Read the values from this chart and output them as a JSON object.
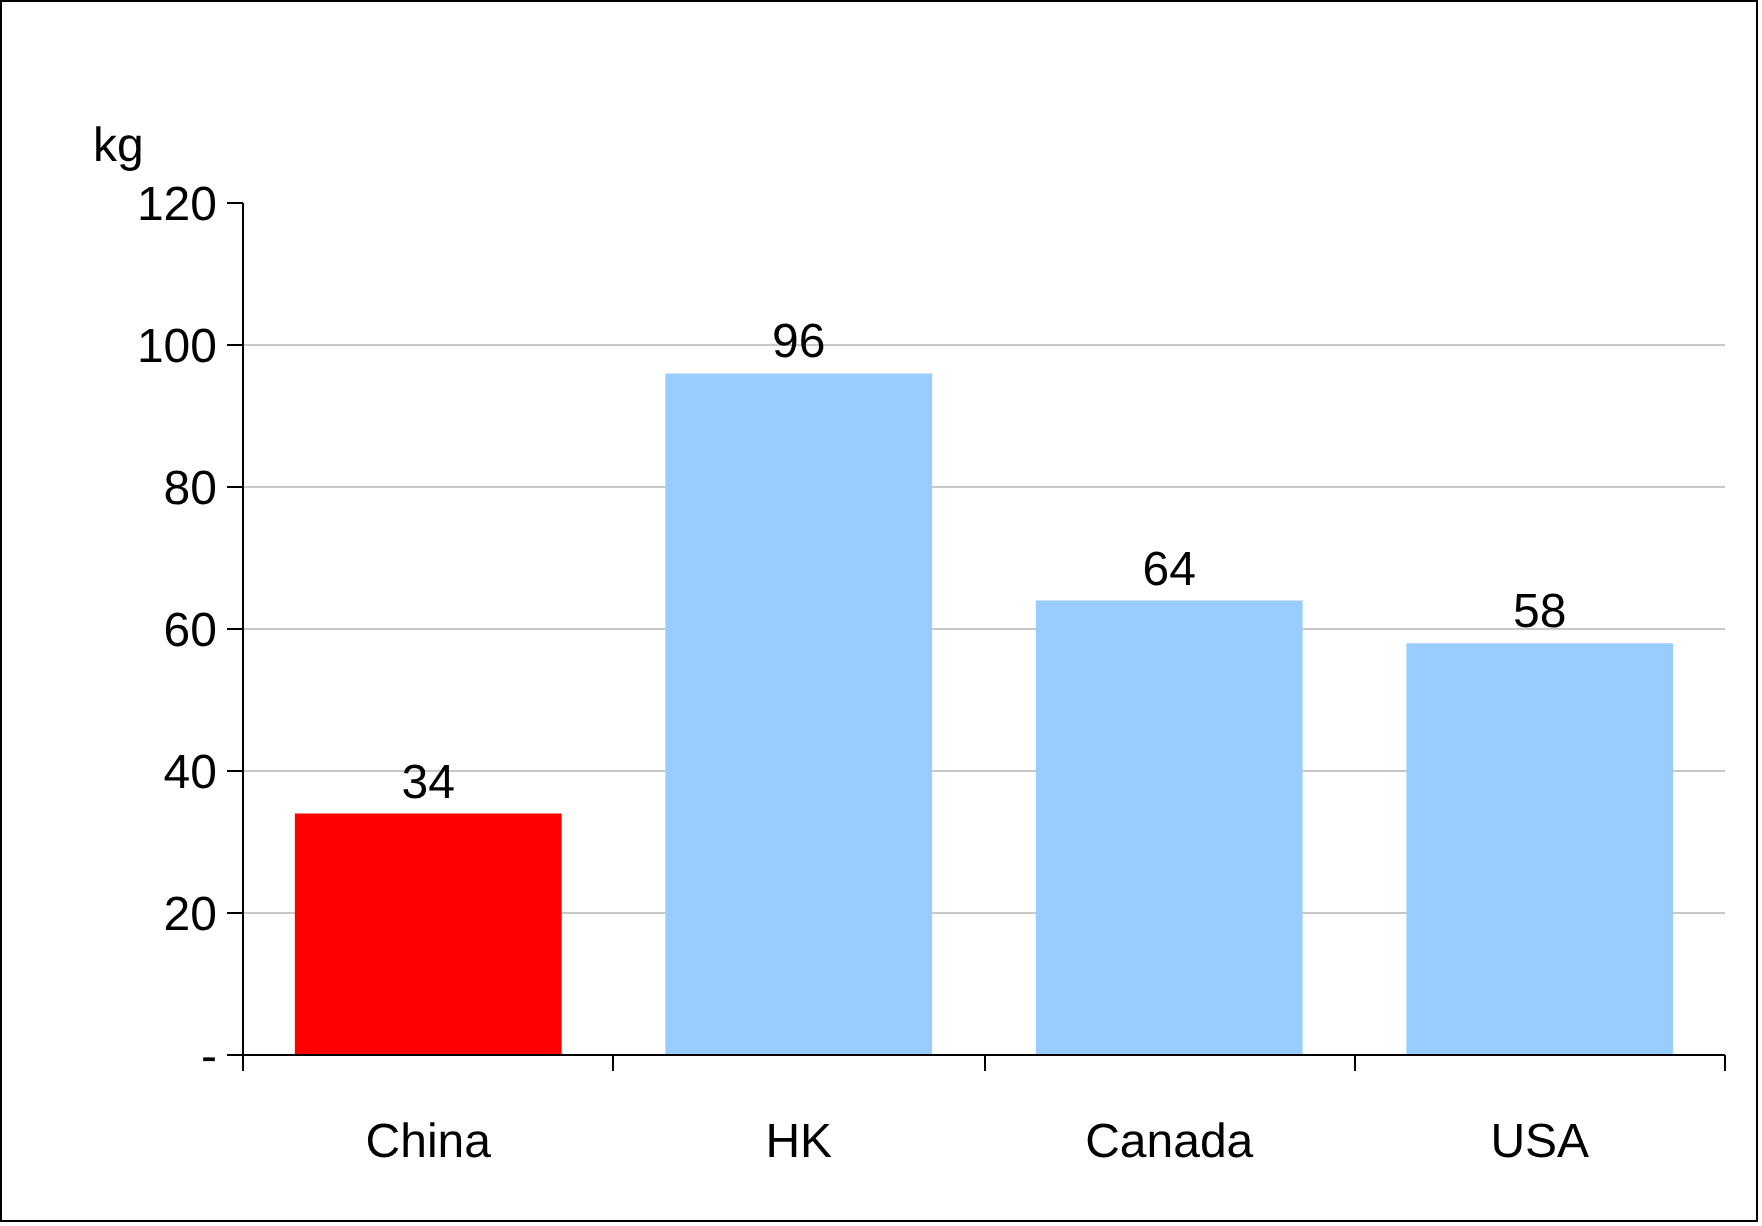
{
  "chart_data": {
    "type": "bar",
    "ylabel": "kg",
    "categories": [
      "China",
      "HK",
      "Canada",
      "USA"
    ],
    "values": [
      34,
      96,
      64,
      58
    ],
    "colors": [
      "#ff0000",
      "#99ccff",
      "#99ccff",
      "#99ccff"
    ],
    "ylim": [
      0,
      120
    ],
    "yticks": [
      {
        "value": 0,
        "label": "-"
      },
      20,
      40,
      60,
      80,
      100,
      120
    ],
    "grid": "y",
    "data_labels": true
  }
}
